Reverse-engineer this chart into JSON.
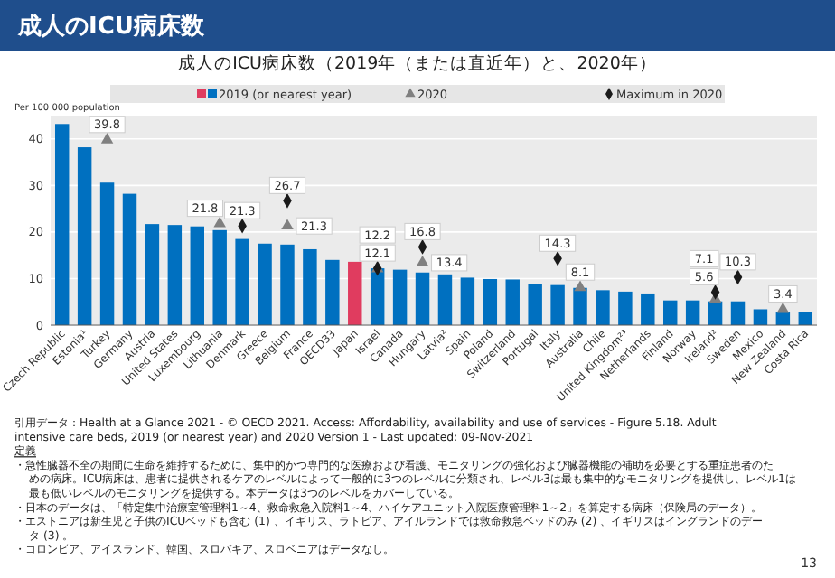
{
  "chart_data": {
    "type": "bar",
    "title": "成人のICU病床数",
    "subtitle": "成人のICU病床数（2019年（または直近年）と、2020年）",
    "ylabel": "Per 100 000 population",
    "categories": [
      "Czech Republic",
      "Estonia¹",
      "Turkey",
      "Germany",
      "Austria",
      "United States",
      "Luxembourg",
      "Lithuania",
      "Denmark",
      "Greece",
      "Belgium",
      "France",
      "OECD33",
      "Japan",
      "Israel",
      "Canada",
      "Hungary",
      "Latvia²",
      "Spain",
      "Poland",
      "Switzerland",
      "Portugal",
      "Italy",
      "Australia",
      "Chile",
      "United Kingdom²³",
      "Netherlands",
      "Finland",
      "Norway",
      "Ireland²",
      "Sweden",
      "Mexico",
      "New Zealand",
      "Costa Rica"
    ],
    "series": [
      {
        "name": "2019 (or nearest year)",
        "color": "#0070c0",
        "colors": [
          "#0070c0",
          "#0070c0",
          "#0070c0",
          "#0070c0",
          "#0070c0",
          "#0070c0",
          "#0070c0",
          "#0070c0",
          "#0070c0",
          "#0070c0",
          "#0070c0",
          "#0070c0",
          "#0070c0",
          "#e03c5f",
          "#0070c0",
          "#0070c0",
          "#0070c0",
          "#0070c0",
          "#0070c0",
          "#0070c0",
          "#0070c0",
          "#0070c0",
          "#0070c0",
          "#0070c0",
          "#0070c0",
          "#0070c0",
          "#0070c0",
          "#0070c0",
          "#0070c0",
          "#0070c0",
          "#0070c0",
          "#0070c0",
          "#0070c0",
          "#0070c0"
        ],
        "values": [
          43.2,
          38.2,
          30.6,
          28.2,
          21.7,
          21.5,
          21.2,
          20.4,
          18.5,
          17.5,
          17.3,
          16.3,
          14.0,
          13.6,
          12.2,
          11.9,
          11.3,
          10.9,
          10.2,
          9.9,
          9.8,
          8.8,
          8.6,
          8.0,
          7.5,
          7.2,
          6.8,
          5.3,
          5.3,
          5.1,
          5.1,
          3.4,
          2.8,
          2.8
        ]
      },
      {
        "name": "2020",
        "type": "scatter",
        "marker": "triangle",
        "color": "#808080",
        "values": [
          null,
          null,
          39.8,
          null,
          null,
          null,
          null,
          21.8,
          null,
          null,
          21.3,
          null,
          null,
          null,
          12.1,
          null,
          13.4,
          null,
          null,
          null,
          null,
          null,
          null,
          8.1,
          null,
          null,
          null,
          null,
          null,
          5.6,
          null,
          null,
          3.4,
          null
        ],
        "value_labels": [
          null,
          null,
          "39.8",
          null,
          null,
          null,
          null,
          "21.8",
          null,
          null,
          "21.3",
          null,
          null,
          null,
          "12.1",
          null,
          "13.4",
          null,
          null,
          null,
          null,
          null,
          null,
          "8.1",
          null,
          null,
          null,
          null,
          null,
          "5.6",
          null,
          null,
          "3.4",
          null
        ]
      },
      {
        "name": "Maximum in 2020",
        "type": "scatter",
        "marker": "diamond",
        "color": "#1a1a1a",
        "values": [
          null,
          null,
          null,
          null,
          null,
          null,
          null,
          null,
          21.3,
          null,
          26.7,
          null,
          null,
          null,
          12.2,
          null,
          16.8,
          null,
          null,
          null,
          null,
          null,
          14.3,
          null,
          null,
          null,
          null,
          null,
          null,
          7.1,
          10.3,
          null,
          null,
          null
        ],
        "value_labels": [
          null,
          null,
          null,
          null,
          null,
          null,
          null,
          null,
          "21.3",
          null,
          "26.7",
          null,
          null,
          null,
          "12.2",
          null,
          "16.8",
          null,
          null,
          null,
          null,
          null,
          "14.3",
          null,
          null,
          null,
          null,
          null,
          null,
          "7.1",
          "10.3",
          null,
          null,
          null
        ]
      }
    ],
    "ylim": [
      0,
      45
    ],
    "yticks": [
      0,
      10,
      20,
      30,
      40
    ],
    "grid": "y",
    "legend": "top",
    "annotations": [
      "引用データ：Health at a Glance 2021 - © OECD 2021. Access: Affordability, availability and use of services - Figure 5.18. Adult intensive care beds, 2019 (or nearest year) and 2020 Version 1 - Last updated: 09-Nov-2021",
      "定義",
      "・急性臓器不全の期間に生命を維持するために、集中的かつ専門的な医療および看護、モニタリングの強化および臓器機能の補助を必要とする重症患者のための病床。ICU病床は、患者に提供されるケアのレベルによって一般的に3つのレベルに分類され、レベル3は最も集中的なモニタリングを提供し、レベル1は最も低いレベルのモニタリングを提供する。本データは3つのレベルをカバーしている。",
      "・日本のデータは、「特定集中治療室管理料1～4、救命救急入院料1～4、ハイケアユニット入院医療管理料1～2」を算定する病床（保険局のデータ）。",
      "・エストニアは新生児と子供のICUベッドも含む (1) 、イギリス、ラトビア、アイルランドでは救命救急ベッドのみ (2) 、イギリスはイングランドのデータ (3) 。",
      "・コロンビア、アイスランド、韓国、スロバキア、スロベニアはデータなし。",
      "13"
    ]
  }
}
